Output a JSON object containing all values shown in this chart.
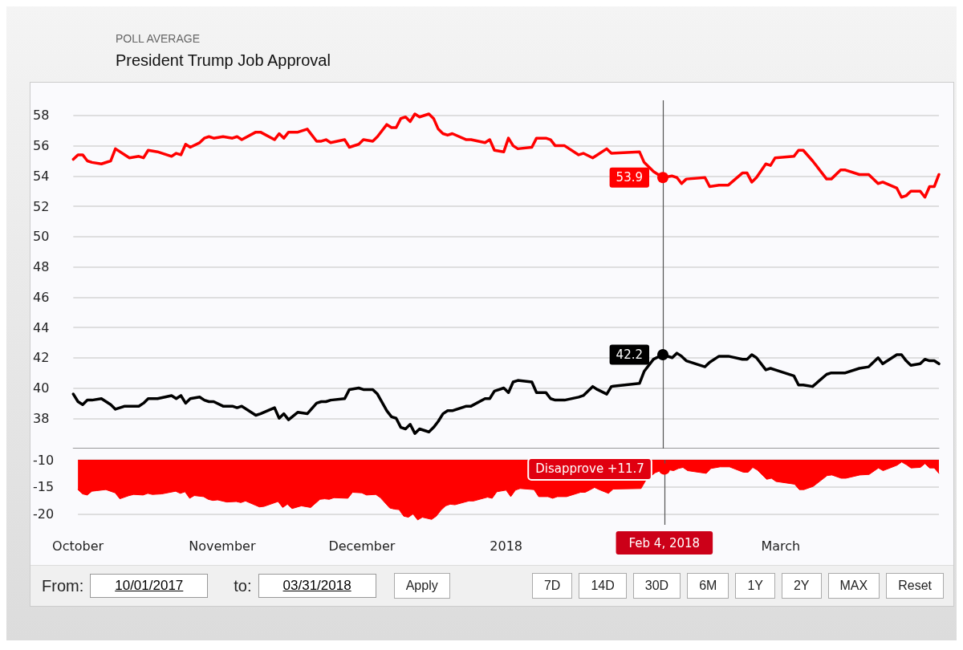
{
  "chart_data": [
    {
      "type": "line",
      "subtitle": "POLL AVERAGE",
      "title": "President Trump Job Approval",
      "xlim": [
        "2017-10-01",
        "2018-04-04"
      ],
      "ylim": [
        36,
        59
      ],
      "yticks": [
        38,
        40,
        42,
        44,
        46,
        48,
        50,
        52,
        54,
        56,
        58
      ],
      "grid": "y",
      "marker": "none",
      "line_style": "solid",
      "tick_labels": "y",
      "x": [
        "2017-10-01",
        "2017-10-02",
        "2017-10-03",
        "2017-10-04",
        "2017-10-05",
        "2017-10-07",
        "2017-10-09",
        "2017-10-10",
        "2017-10-12",
        "2017-10-13",
        "2017-10-15",
        "2017-10-16",
        "2017-10-17",
        "2017-10-19",
        "2017-10-22",
        "2017-10-23",
        "2017-10-24",
        "2017-10-25",
        "2017-10-26",
        "2017-10-28",
        "2017-10-29",
        "2017-10-30",
        "2017-10-31",
        "2017-11-02",
        "2017-11-04",
        "2017-11-05",
        "2017-11-06",
        "2017-11-09",
        "2017-11-10",
        "2017-11-13",
        "2017-11-14",
        "2017-11-15",
        "2017-11-16",
        "2017-11-18",
        "2017-11-20",
        "2017-11-22",
        "2017-11-23",
        "2017-11-24",
        "2017-11-25",
        "2017-11-28",
        "2017-11-29",
        "2017-12-01",
        "2017-12-02",
        "2017-12-04",
        "2017-12-05",
        "2017-12-07",
        "2017-12-08",
        "2017-12-09",
        "2017-12-10",
        "2017-12-11",
        "2017-12-12",
        "2017-12-13",
        "2017-12-14",
        "2017-12-16",
        "2017-12-17",
        "2017-12-18",
        "2017-12-19",
        "2017-12-20",
        "2017-12-21",
        "2017-12-24",
        "2017-12-25",
        "2017-12-28",
        "2017-12-29",
        "2017-12-30",
        "2018-01-01",
        "2018-01-02",
        "2018-01-03",
        "2018-01-04",
        "2018-01-07",
        "2018-01-08",
        "2018-01-10",
        "2018-01-11",
        "2018-01-12",
        "2018-01-14",
        "2018-01-17",
        "2018-01-18",
        "2018-01-20",
        "2018-01-21",
        "2018-01-23",
        "2018-01-24",
        "2018-01-30",
        "2018-01-31",
        "2018-02-02",
        "2018-02-04",
        "2018-02-06",
        "2018-02-07",
        "2018-02-08",
        "2018-02-09",
        "2018-02-13",
        "2018-02-14",
        "2018-02-16",
        "2018-02-18",
        "2018-02-21",
        "2018-02-22",
        "2018-02-23",
        "2018-02-24",
        "2018-02-26",
        "2018-02-27",
        "2018-02-28",
        "2018-03-04",
        "2018-03-05",
        "2018-03-06",
        "2018-03-08",
        "2018-03-11",
        "2018-03-12",
        "2018-03-14",
        "2018-03-15",
        "2018-03-18",
        "2018-03-20",
        "2018-03-22",
        "2018-03-23",
        "2018-03-26",
        "2018-03-27",
        "2018-03-28",
        "2018-03-29",
        "2018-03-31",
        "2018-04-01",
        "2018-04-02",
        "2018-04-03",
        "2018-04-04"
      ],
      "series": [
        {
          "color": "#ff0000",
          "values": [
            55.1,
            55.4,
            55.4,
            55.0,
            54.9,
            54.8,
            55.0,
            55.8,
            55.4,
            55.2,
            55.3,
            55.2,
            55.7,
            55.6,
            55.3,
            55.5,
            55.4,
            56.1,
            55.9,
            56.2,
            56.5,
            56.6,
            56.5,
            56.6,
            56.5,
            56.6,
            56.4,
            56.9,
            56.9,
            56.4,
            56.8,
            56.5,
            56.9,
            56.9,
            57.1,
            56.3,
            56.3,
            56.4,
            56.2,
            56.4,
            55.9,
            56.1,
            56.4,
            56.3,
            56.6,
            57.4,
            57.2,
            57.2,
            57.8,
            57.9,
            57.6,
            58.1,
            57.9,
            58.1,
            57.8,
            57.1,
            56.8,
            56.7,
            56.8,
            56.4,
            56.4,
            56.2,
            56.4,
            55.7,
            55.6,
            56.5,
            56.0,
            55.8,
            55.9,
            56.5,
            56.5,
            56.4,
            56.0,
            56.0,
            55.4,
            55.5,
            55.2,
            55.4,
            55.8,
            55.5,
            55.6,
            54.9,
            54.3,
            53.9,
            54.0,
            53.9,
            53.5,
            53.8,
            53.9,
            53.3,
            53.4,
            53.4,
            54.2,
            54.2,
            53.6,
            53.9,
            54.8,
            54.7,
            55.2,
            55.3,
            55.7,
            55.7,
            55.0,
            53.8,
            53.8,
            54.4,
            54.4,
            54.1,
            54.1,
            53.5,
            53.6,
            53.2,
            52.6,
            52.7,
            53.0,
            53.0,
            52.6,
            53.3,
            53.3,
            54.1
          ]
        },
        {
          "color": "#000000",
          "values": [
            39.6,
            39.1,
            38.9,
            39.2,
            39.2,
            39.3,
            38.9,
            38.6,
            38.8,
            38.8,
            38.8,
            39.0,
            39.3,
            39.3,
            39.5,
            39.3,
            39.5,
            39.0,
            39.3,
            39.4,
            39.2,
            39.1,
            39.1,
            38.8,
            38.8,
            38.7,
            38.8,
            38.2,
            38.3,
            38.7,
            38.0,
            38.3,
            37.9,
            38.4,
            38.3,
            39.0,
            39.1,
            39.1,
            39.2,
            39.3,
            39.9,
            40.0,
            39.9,
            39.9,
            39.6,
            38.5,
            38.1,
            38.0,
            37.4,
            37.3,
            37.6,
            37.0,
            37.3,
            37.1,
            37.4,
            37.8,
            38.3,
            38.5,
            38.5,
            38.8,
            38.8,
            39.3,
            39.3,
            39.8,
            40.0,
            39.7,
            40.4,
            40.5,
            40.4,
            39.7,
            39.7,
            39.3,
            39.2,
            39.2,
            39.4,
            39.5,
            40.1,
            39.9,
            39.6,
            40.1,
            40.3,
            41.1,
            41.9,
            42.2,
            42.0,
            42.3,
            42.1,
            41.8,
            41.4,
            41.7,
            42.1,
            42.1,
            41.9,
            41.9,
            42.2,
            42.0,
            41.2,
            41.3,
            41.2,
            40.8,
            40.2,
            40.2,
            40.1,
            40.9,
            41.0,
            41.0,
            41.0,
            41.3,
            41.4,
            42.0,
            41.6,
            42.2,
            42.2,
            41.8,
            41.5,
            41.6,
            41.9,
            41.8,
            41.8,
            41.6
          ]
        }
      ],
      "ref_lines": [
        {
          "axis": "x",
          "value": "2018-02-04",
          "label": null,
          "color": "#555555"
        }
      ],
      "annotations": [
        {
          "text": "53.9",
          "x": "2018-02-04",
          "y": 53.9
        },
        {
          "text": "42.2",
          "x": "2018-02-04",
          "y": 42.2
        }
      ]
    },
    {
      "type": "area",
      "xlim": [
        "2017-10-01",
        "2018-04-04"
      ],
      "ylim": [
        -22,
        -10
      ],
      "yticks": [
        -20,
        -15,
        -10
      ],
      "grid": "y",
      "marker": "none",
      "xticks": [
        {
          "value": "2017-10-01",
          "label": "October"
        },
        {
          "value": "2017-11-01",
          "label": "November"
        },
        {
          "value": "2017-12-01",
          "label": "December"
        },
        {
          "value": "2018-01-01",
          "label": "2018"
        },
        {
          "value": "2018-03-01",
          "label": "March"
        }
      ],
      "x": [
        "2017-10-01",
        "2017-10-02",
        "2017-10-03",
        "2017-10-04",
        "2017-10-05",
        "2017-10-07",
        "2017-10-09",
        "2017-10-10",
        "2017-10-12",
        "2017-10-13",
        "2017-10-15",
        "2017-10-16",
        "2017-10-17",
        "2017-10-19",
        "2017-10-22",
        "2017-10-23",
        "2017-10-24",
        "2017-10-25",
        "2017-10-26",
        "2017-10-28",
        "2017-10-29",
        "2017-10-30",
        "2017-10-31",
        "2017-11-02",
        "2017-11-04",
        "2017-11-05",
        "2017-11-06",
        "2017-11-09",
        "2017-11-10",
        "2017-11-13",
        "2017-11-14",
        "2017-11-15",
        "2017-11-16",
        "2017-11-18",
        "2017-11-20",
        "2017-11-22",
        "2017-11-23",
        "2017-11-24",
        "2017-11-25",
        "2017-11-28",
        "2017-11-29",
        "2017-12-01",
        "2017-12-02",
        "2017-12-04",
        "2017-12-05",
        "2017-12-07",
        "2017-12-08",
        "2017-12-09",
        "2017-12-10",
        "2017-12-11",
        "2017-12-12",
        "2017-12-13",
        "2017-12-14",
        "2017-12-16",
        "2017-12-17",
        "2017-12-18",
        "2017-12-19",
        "2017-12-20",
        "2017-12-21",
        "2017-12-24",
        "2017-12-25",
        "2017-12-28",
        "2017-12-29",
        "2017-12-30",
        "2018-01-01",
        "2018-01-02",
        "2018-01-03",
        "2018-01-04",
        "2018-01-07",
        "2018-01-08",
        "2018-01-10",
        "2018-01-11",
        "2018-01-12",
        "2018-01-14",
        "2018-01-17",
        "2018-01-18",
        "2018-01-20",
        "2018-01-21",
        "2018-01-23",
        "2018-01-24",
        "2018-01-30",
        "2018-01-31",
        "2018-02-02",
        "2018-02-04",
        "2018-02-06",
        "2018-02-07",
        "2018-02-08",
        "2018-02-09",
        "2018-02-13",
        "2018-02-14",
        "2018-02-16",
        "2018-02-18",
        "2018-02-21",
        "2018-02-22",
        "2018-02-23",
        "2018-02-24",
        "2018-02-26",
        "2018-02-27",
        "2018-02-28",
        "2018-03-04",
        "2018-03-05",
        "2018-03-06",
        "2018-03-08",
        "2018-03-11",
        "2018-03-12",
        "2018-03-14",
        "2018-03-15",
        "2018-03-18",
        "2018-03-20",
        "2018-03-22",
        "2018-03-23",
        "2018-03-26",
        "2018-03-27",
        "2018-03-28",
        "2018-03-29",
        "2018-03-31",
        "2018-04-01",
        "2018-04-02",
        "2018-04-03",
        "2018-04-04"
      ],
      "series": [
        {
          "color": "#ff0000",
          "values": [
            -15.5,
            -16.3,
            -16.5,
            -15.8,
            -15.7,
            -15.5,
            -16.1,
            -17.2,
            -16.6,
            -16.4,
            -16.5,
            -16.2,
            -16.4,
            -16.3,
            -15.8,
            -16.2,
            -15.9,
            -17.1,
            -16.6,
            -16.8,
            -17.3,
            -17.5,
            -17.4,
            -17.8,
            -17.7,
            -17.9,
            -17.6,
            -18.7,
            -18.6,
            -17.7,
            -18.8,
            -18.2,
            -19.0,
            -18.5,
            -18.8,
            -17.3,
            -17.2,
            -17.3,
            -17.0,
            -17.1,
            -16.0,
            -16.1,
            -16.5,
            -16.4,
            -17.0,
            -18.9,
            -19.1,
            -19.2,
            -20.4,
            -20.6,
            -20.0,
            -21.1,
            -20.6,
            -21.0,
            -20.4,
            -19.3,
            -18.5,
            -18.2,
            -18.3,
            -17.6,
            -17.6,
            -16.9,
            -17.1,
            -15.9,
            -15.6,
            -16.8,
            -15.6,
            -15.3,
            -15.5,
            -16.8,
            -16.8,
            -17.1,
            -16.8,
            -16.8,
            -16.0,
            -16.0,
            -15.1,
            -15.5,
            -16.2,
            -15.4,
            -15.3,
            -13.8,
            -12.4,
            -11.7,
            -12.0,
            -11.6,
            -11.4,
            -12.0,
            -12.5,
            -11.6,
            -11.3,
            -11.3,
            -12.3,
            -12.3,
            -11.4,
            -11.9,
            -13.6,
            -13.4,
            -14.0,
            -14.5,
            -15.5,
            -15.5,
            -14.9,
            -12.9,
            -12.8,
            -13.4,
            -13.4,
            -12.8,
            -12.7,
            -11.5,
            -12.0,
            -11.0,
            -10.4,
            -10.9,
            -11.5,
            -11.4,
            -10.7,
            -11.5,
            -11.5,
            -12.5
          ]
        }
      ],
      "ref_lines": [
        {
          "axis": "x",
          "value": "2018-02-04",
          "label": "Feb 4, 2018",
          "color": "#555555"
        }
      ],
      "annotations": [
        {
          "text": "Disapprove +11.7",
          "x": "2018-02-04",
          "y": -11.7
        }
      ]
    },
    {
      "type": "other",
      "annotations": [
        "From:",
        "10/01/2017",
        "to:",
        "03/31/2018",
        "Apply",
        "7D",
        "14D",
        "30D",
        "6M",
        "1Y",
        "2Y",
        "MAX",
        "Reset"
      ]
    }
  ]
}
